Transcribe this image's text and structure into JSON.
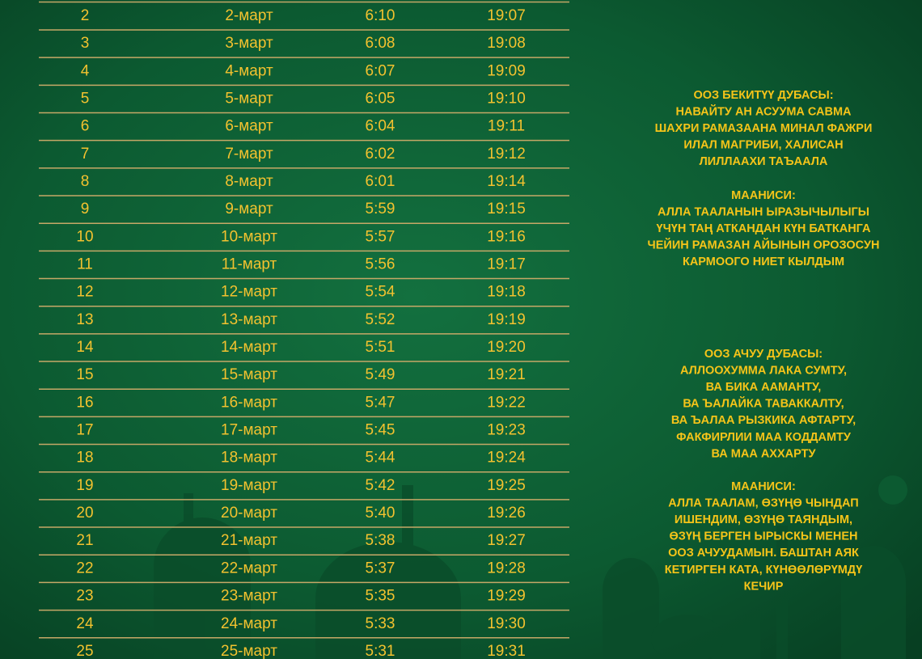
{
  "table": {
    "rows": [
      [
        "2",
        "2-март",
        "6:10",
        "19:07"
      ],
      [
        "3",
        "3-март",
        "6:08",
        "19:08"
      ],
      [
        "4",
        "4-март",
        "6:07",
        "19:09"
      ],
      [
        "5",
        "5-март",
        "6:05",
        "19:10"
      ],
      [
        "6",
        "6-март",
        "6:04",
        "19:11"
      ],
      [
        "7",
        "7-март",
        "6:02",
        "19:12"
      ],
      [
        "8",
        "8-март",
        "6:01",
        "19:14"
      ],
      [
        "9",
        "9-март",
        "5:59",
        "19:15"
      ],
      [
        "10",
        "10-март",
        "5:57",
        "19:16"
      ],
      [
        "11",
        "11-март",
        "5:56",
        "19:17"
      ],
      [
        "12",
        "12-март",
        "5:54",
        "19:18"
      ],
      [
        "13",
        "13-март",
        "5:52",
        "19:19"
      ],
      [
        "14",
        "14-март",
        "5:51",
        "19:20"
      ],
      [
        "15",
        "15-март",
        "5:49",
        "19:21"
      ],
      [
        "16",
        "16-март",
        "5:47",
        "19:22"
      ],
      [
        "17",
        "17-март",
        "5:45",
        "19:23"
      ],
      [
        "18",
        "18-март",
        "5:44",
        "19:24"
      ],
      [
        "19",
        "19-март",
        "5:42",
        "19:25"
      ],
      [
        "20",
        "20-март",
        "5:40",
        "19:26"
      ],
      [
        "21",
        "21-март",
        "5:38",
        "19:27"
      ],
      [
        "22",
        "22-март",
        "5:37",
        "19:28"
      ],
      [
        "23",
        "23-март",
        "5:35",
        "19:29"
      ],
      [
        "24",
        "24-март",
        "5:33",
        "19:30"
      ],
      [
        "25",
        "25-март",
        "5:31",
        "19:31"
      ]
    ]
  },
  "prayers": [
    {
      "lines": [
        "ООЗ БЕКИТҮҮ ДУБАСЫ:",
        "НАВАЙТУ АН АСУУМА САВМА",
        "ШАХРИ РАМАЗААНА МИНАЛ ФАЖРИ",
        "ИЛАЛ МАГРИБИ, ХАЛИСАН",
        "ЛИЛЛААХИ ТАЪААЛА"
      ]
    },
    {
      "lines": [
        "МААНИСИ:",
        "АЛЛА ТААЛАНЫН ЫРАЗЫЧЫЛЫГЫ",
        "ҮЧҮН ТАҢ АТКАНДАН КҮН БАТКАНГА",
        "ЧЕЙИН РАМАЗАН АЙЫНЫН ОРОЗОСУН",
        "КАРМООГО НИЕТ КЫЛДЫМ"
      ]
    },
    {
      "lines": [
        "ООЗ АЧУУ ДУБАСЫ:",
        "АЛЛООХУММА ЛАКА СУМТУ,",
        "ВА БИКА ААМАНТУ,",
        "ВА ЪАЛАЙКА ТАВАККАЛТУ,",
        "ВА ЪАЛАА РЫЗКИКА АФТАРТУ,",
        "ФАКФИРЛИИ МАА КОДДАМТУ",
        "ВА МАА АХХАРТУ"
      ]
    },
    {
      "lines": [
        "МААНИСИ:",
        "АЛЛА ТААЛАМ, ӨЗҮҢӨ ЧЫНДАП",
        "ИШЕНДИМ, ӨЗҮҢӨ ТАЯНДЫМ,",
        "ӨЗҮҢ БЕРГЕН ЫРЫСКЫ МЕНЕН",
        "ООЗ АЧУУДАМЫН. БАШТАН АЯК",
        "КЕТИРГЕН КАТА, КҮНӨӨЛӨРҮМДҮ",
        "КЕЧИР"
      ]
    }
  ]
}
